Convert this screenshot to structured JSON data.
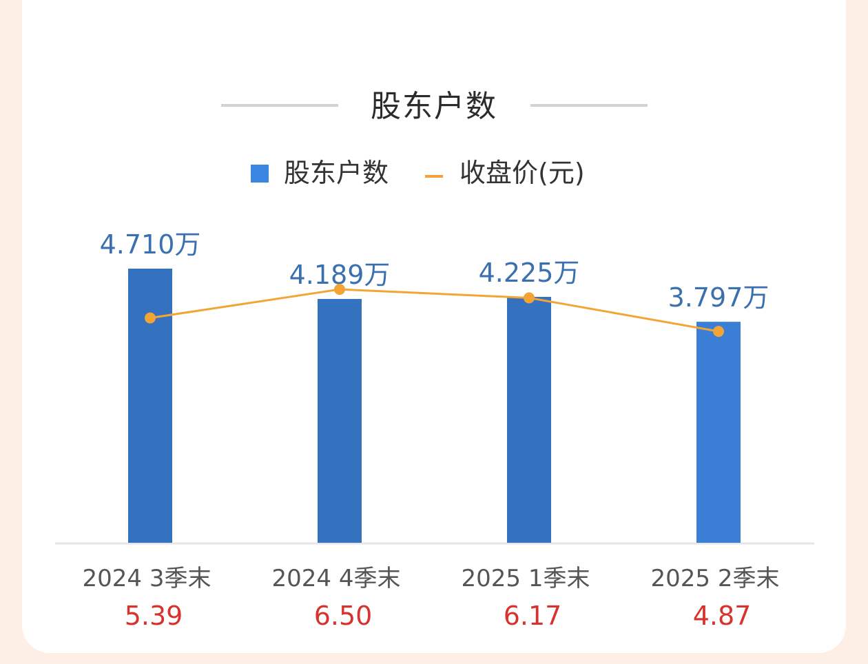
{
  "title": "股东户数",
  "legend": {
    "bar_label": "股东户数",
    "line_label": "收盘价(元)"
  },
  "colors": {
    "bar": "#3472c0",
    "bar_last": "#3a7fd5",
    "line": "#f2a535",
    "bar_label": "#3a6fb0",
    "price": "#d8322f",
    "axis": "#e6e6e6"
  },
  "chart_data": {
    "type": "bar",
    "categories": [
      "2024 3季末",
      "2024 4季末",
      "2025 1季末",
      "2025 2季末"
    ],
    "series": [
      {
        "name": "股东户数",
        "type": "bar",
        "values": [
          4.71,
          4.189,
          4.225,
          3.797
        ],
        "labels": [
          "4.710万",
          "4.189万",
          "4.225万",
          "3.797万"
        ]
      },
      {
        "name": "收盘价(元)",
        "type": "line",
        "values": [
          5.39,
          6.5,
          6.17,
          4.87
        ],
        "labels": [
          "5.39",
          "6.50",
          "6.17",
          "4.87"
        ]
      }
    ]
  }
}
